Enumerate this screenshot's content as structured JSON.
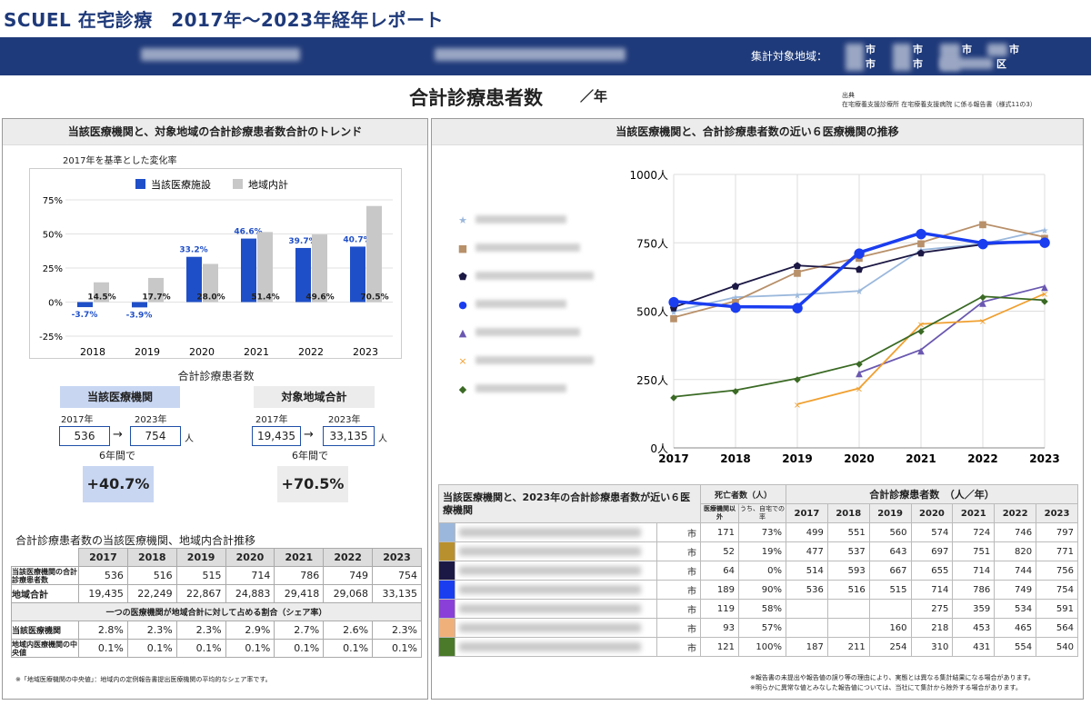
{
  "header": {
    "title": "SCUEL 在宅診療　2017年〜2023年経年レポート",
    "region_label": "集計対象地域：",
    "region_row1": [
      "市",
      "市",
      "市",
      "市"
    ],
    "region_row2": [
      "市",
      "市",
      "区"
    ]
  },
  "main": {
    "title": "合計診療患者数",
    "unit": "／年",
    "source_label": "出典",
    "source_text": "在宅療養支援診療所 在宅療養支援病院 に係る報告書（様式11の3）"
  },
  "left": {
    "heading": "当該医療機関と、対象地域の合計診療患者数合計のトレンド",
    "subtitle": "2017年を基準とした変化率",
    "count_title": "合計診療患者数",
    "self": {
      "label": "当該医療機関",
      "y1": "2017年",
      "y2": "2023年",
      "v1": "536",
      "v2": "754",
      "unit": "人",
      "period": "6年間で",
      "change": "+40.7%"
    },
    "region": {
      "label": "対象地域合計",
      "y1": "2017年",
      "y2": "2023年",
      "v1": "19,435",
      "v2": "33,135",
      "unit": "人",
      "period": "6年間で",
      "change": "+70.5%"
    },
    "table_title": "合計診療患者数の当該医療機関、地域内合計推移",
    "years": [
      "2017",
      "2018",
      "2019",
      "2020",
      "2021",
      "2022",
      "2023"
    ],
    "row_self_label": "当該医療機関の合計診療患者数",
    "row_self": [
      "536",
      "516",
      "515",
      "714",
      "786",
      "749",
      "754"
    ],
    "row_region_label": "地域合計",
    "row_region": [
      "19,435",
      "22,249",
      "22,867",
      "24,883",
      "29,418",
      "29,068",
      "33,135"
    ],
    "share_heading": "一つの医療機関が地域合計に対して占める割合（シェア率）",
    "row_share_label": "当該医療機関",
    "row_share": [
      "2.8%",
      "2.3%",
      "2.3%",
      "2.9%",
      "2.7%",
      "2.6%",
      "2.3%"
    ],
    "row_median_label": "地域内医療機関の中央値",
    "row_median": [
      "0.1%",
      "0.1%",
      "0.1%",
      "0.1%",
      "0.1%",
      "0.1%",
      "0.1%"
    ],
    "footnote": "※「地域医療機関の中央値」：地域内の定例報告書提出医療機関の平均的なシェア率です。"
  },
  "right": {
    "heading": "当該医療機関と、合計診療患者数の近い６医療機関の推移",
    "table_head": "当該医療機関と、2023年の合計診療患者数が近い６医療機関",
    "death_head": "死亡者数（人）",
    "death_sub1": "医療機関以外",
    "death_sub2": "うち、自宅での率",
    "patients_head": "合計診療患者数　（人／年）",
    "rows": [
      {
        "color": "#9bb8dc",
        "city": "市",
        "d1": "171",
        "d2": "73%",
        "v": [
          "499",
          "551",
          "560",
          "574",
          "724",
          "746",
          "797"
        ]
      },
      {
        "color": "#b8902e",
        "city": "市",
        "d1": "52",
        "d2": "19%",
        "v": [
          "477",
          "537",
          "643",
          "697",
          "751",
          "820",
          "771"
        ]
      },
      {
        "color": "#1c1845",
        "city": "市",
        "d1": "64",
        "d2": "0%",
        "v": [
          "514",
          "593",
          "667",
          "655",
          "714",
          "744",
          "756"
        ]
      },
      {
        "color": "#1a3df0",
        "city": "市",
        "d1": "189",
        "d2": "90%",
        "v": [
          "536",
          "516",
          "515",
          "714",
          "786",
          "749",
          "754"
        ]
      },
      {
        "color": "#8a3fd8",
        "city": "市",
        "d1": "119",
        "d2": "58%",
        "v": [
          "",
          "",
          "",
          "275",
          "359",
          "534",
          "591"
        ]
      },
      {
        "color": "#f0b07a",
        "city": "市",
        "d1": "93",
        "d2": "57%",
        "v": [
          "",
          "",
          "160",
          "218",
          "453",
          "465",
          "564"
        ]
      },
      {
        "color": "#4a7a2a",
        "city": "市",
        "d1": "121",
        "d2": "100%",
        "v": [
          "187",
          "211",
          "254",
          "310",
          "431",
          "554",
          "540"
        ]
      }
    ],
    "note1": "※報告書の未提出や報告値の誤り等の理由により、実態とは異なる集計結果になる場合があります。",
    "note2": "※明らかに異常な値とみなした報告値については、当社にて集計から除外する場合があります。"
  },
  "chart_data": [
    {
      "type": "bar",
      "categories": [
        "2018",
        "2019",
        "2020",
        "2021",
        "2022",
        "2023"
      ],
      "series": [
        {
          "name": "当該医療施設",
          "color": "#1f4fc8",
          "values": [
            -3.7,
            -3.9,
            33.2,
            46.6,
            39.7,
            40.7
          ],
          "labels": [
            "-3.7%",
            "-3.9%",
            "33.2%",
            "46.6%",
            "39.7%",
            "40.7%"
          ]
        },
        {
          "name": "地域内計",
          "color": "#c8c8c8",
          "values": [
            14.5,
            17.7,
            28.0,
            51.4,
            49.6,
            70.5
          ],
          "labels": [
            "14.5%",
            "17.7%",
            "28.0%",
            "51.4%",
            "49.6%",
            "70.5%"
          ]
        }
      ],
      "ylim": [
        -25,
        75
      ],
      "yticks": [
        "75%",
        "50%",
        "25%",
        "0%",
        "-25%"
      ]
    },
    {
      "type": "line",
      "x": [
        "2017",
        "2018",
        "2019",
        "2020",
        "2021",
        "2022",
        "2023"
      ],
      "ylim": [
        0,
        1000
      ],
      "yticks": [
        "1000人",
        "750人",
        "500人",
        "250人",
        "0人"
      ],
      "series": [
        {
          "color": "#9bb8dc",
          "marker": "★",
          "values": [
            499,
            551,
            560,
            574,
            724,
            746,
            797
          ]
        },
        {
          "color": "#b8906a",
          "marker": "■",
          "values": [
            477,
            537,
            643,
            697,
            751,
            820,
            771
          ]
        },
        {
          "color": "#1c1845",
          "marker": "⬟",
          "values": [
            514,
            593,
            667,
            655,
            714,
            744,
            756
          ]
        },
        {
          "color": "#1a3df0",
          "marker": "●",
          "values": [
            536,
            516,
            515,
            714,
            786,
            749,
            754
          ]
        },
        {
          "color": "#6a58b0",
          "marker": "▲",
          "values": [
            null,
            null,
            null,
            275,
            359,
            534,
            591
          ]
        },
        {
          "color": "#f0a030",
          "marker": "×",
          "values": [
            null,
            null,
            160,
            218,
            453,
            465,
            564
          ]
        },
        {
          "color": "#3a6a24",
          "marker": "◆",
          "values": [
            187,
            211,
            254,
            310,
            431,
            554,
            540
          ]
        }
      ]
    }
  ]
}
